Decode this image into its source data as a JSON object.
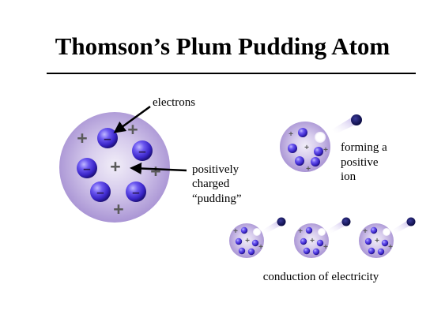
{
  "title": "Thomson’s Plum Pudding Atom",
  "labels": {
    "electrons": "electrons",
    "pudding_line1": "positively",
    "pudding_line2": "charged",
    "pudding_line3": "“pudding”",
    "ion_line1": "forming a",
    "ion_line2": "positive",
    "ion_line3": "ion",
    "conduction": "conduction of electricity"
  },
  "symbols": {
    "plus": "+",
    "minus": "–"
  },
  "colors": {
    "pudding_center": "#eeeaf6",
    "pudding_edge": "#a58fd2",
    "electron_light": "#b0a8ff",
    "electron_mid": "#4c38e0",
    "electron_dark": "#1d1078",
    "ejected_electron": "#10105a",
    "trail": "#b9a8e6",
    "plus_sign": "#5a5a5a",
    "arrow": "#000000"
  }
}
